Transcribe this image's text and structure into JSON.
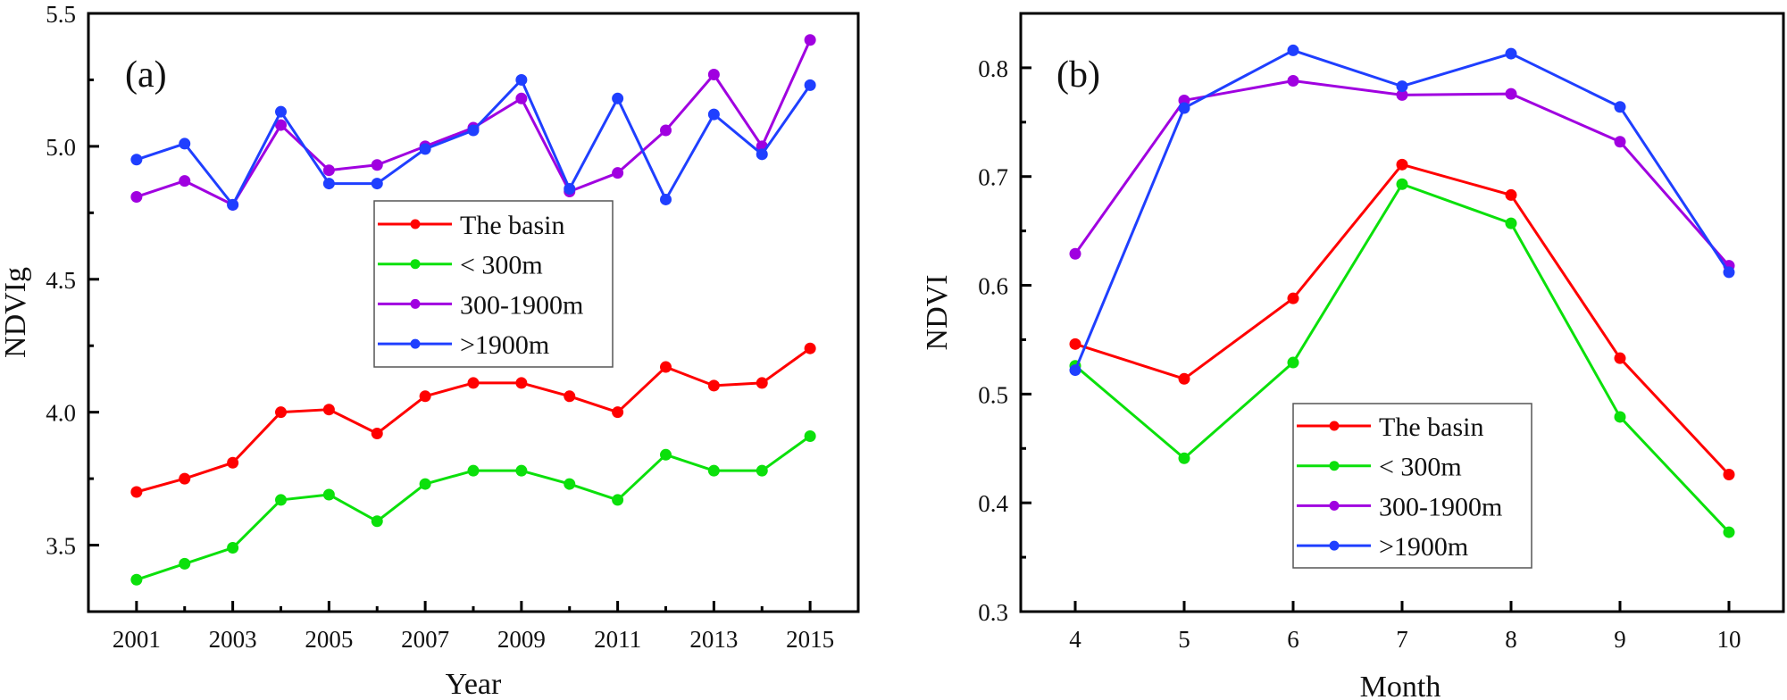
{
  "chart_data": [
    {
      "type": "line",
      "panel_label": "(a)",
      "title": "",
      "xlabel": "Year",
      "ylabel": "NDVIg",
      "x": [
        2001,
        2002,
        2003,
        2004,
        2005,
        2006,
        2007,
        2008,
        2009,
        2010,
        2011,
        2012,
        2013,
        2014,
        2015
      ],
      "xlim": [
        2000,
        2016
      ],
      "ylim": [
        3.25,
        5.5
      ],
      "x_tick_labels": [
        "2001",
        "2003",
        "2005",
        "2007",
        "2009",
        "2011",
        "2013",
        "2015"
      ],
      "y_tick_labels": [
        "3.5",
        "4.0",
        "4.5",
        "5.0",
        "5.5"
      ],
      "grid": false,
      "legend_position": "center",
      "series": [
        {
          "name": "The basin",
          "color": "#ff0000",
          "values": [
            3.7,
            3.75,
            3.81,
            4.0,
            4.01,
            3.92,
            4.06,
            4.11,
            4.11,
            4.06,
            4.0,
            4.17,
            4.1,
            4.11,
            4.24
          ]
        },
        {
          "name": "< 300m",
          "color": "#0be00b",
          "values": [
            3.37,
            3.43,
            3.49,
            3.67,
            3.69,
            3.59,
            3.73,
            3.78,
            3.78,
            3.73,
            3.67,
            3.84,
            3.78,
            3.78,
            3.91
          ]
        },
        {
          "name": "300-1900m",
          "color": "#a000e0",
          "values": [
            4.81,
            4.87,
            4.78,
            5.08,
            4.91,
            4.93,
            5.0,
            5.07,
            5.18,
            4.83,
            4.9,
            5.06,
            5.27,
            5.0,
            5.4
          ]
        },
        {
          "name": ">1900m",
          "color": "#1f3fff",
          "values": [
            4.95,
            5.01,
            4.78,
            5.13,
            4.86,
            4.86,
            4.99,
            5.06,
            5.25,
            4.84,
            5.18,
            4.8,
            5.12,
            4.97,
            5.23
          ]
        }
      ]
    },
    {
      "type": "line",
      "panel_label": "(b)",
      "title": "",
      "xlabel": "Month",
      "ylabel": "NDVI",
      "x": [
        4,
        5,
        6,
        7,
        8,
        9,
        10
      ],
      "xlim": [
        3.5,
        10.5
      ],
      "ylim": [
        0.3,
        0.85
      ],
      "x_tick_labels": [
        "4",
        "5",
        "6",
        "7",
        "8",
        "9",
        "10"
      ],
      "y_tick_labels": [
        "0.3",
        "0.4",
        "0.5",
        "0.6",
        "0.7",
        "0.8"
      ],
      "grid": false,
      "legend_position": "bottom-center",
      "series": [
        {
          "name": "The basin",
          "color": "#ff0000",
          "values": [
            0.546,
            0.514,
            0.588,
            0.711,
            0.683,
            0.533,
            0.426
          ]
        },
        {
          "name": "< 300m",
          "color": "#0be00b",
          "values": [
            0.526,
            0.441,
            0.529,
            0.693,
            0.657,
            0.479,
            0.373
          ]
        },
        {
          "name": "300-1900m",
          "color": "#a000e0",
          "values": [
            0.629,
            0.77,
            0.788,
            0.775,
            0.776,
            0.732,
            0.618
          ]
        },
        {
          "name": ">1900m",
          "color": "#1f3fff",
          "values": [
            0.522,
            0.763,
            0.816,
            0.783,
            0.813,
            0.764,
            0.612
          ]
        }
      ]
    }
  ]
}
